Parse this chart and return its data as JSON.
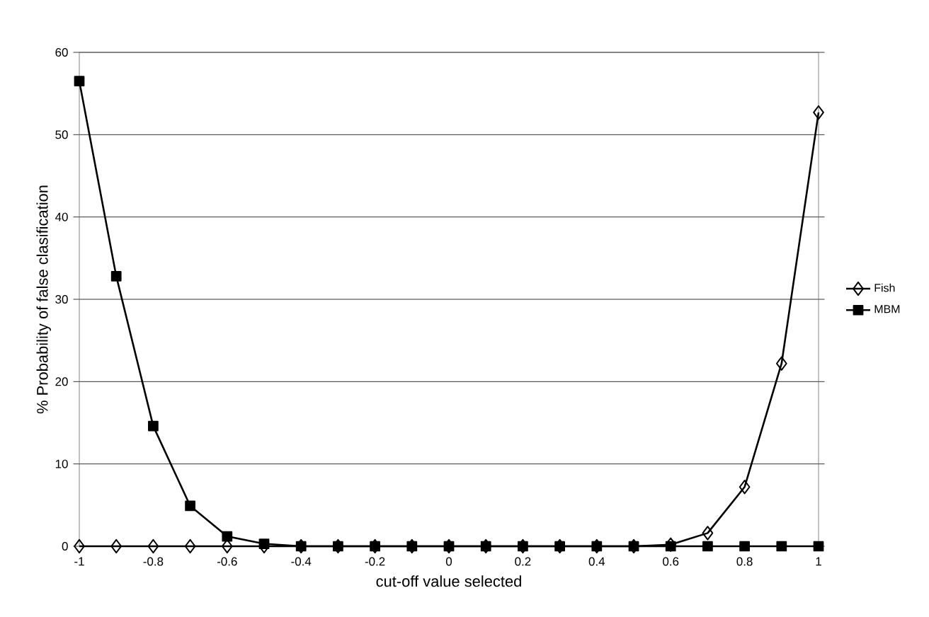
{
  "chart_data": {
    "type": "line",
    "xlabel": "cut-off value selected",
    "ylabel": "% Probability of false clasification",
    "x": [
      -1,
      -0.9,
      -0.8,
      -0.7,
      -0.6,
      -0.5,
      -0.4,
      -0.3,
      -0.2,
      -0.1,
      0,
      0.1,
      0.2,
      0.3,
      0.4,
      0.5,
      0.6,
      0.7,
      0.8,
      0.9,
      1
    ],
    "series": [
      {
        "name": "Fish",
        "color": "#000000",
        "marker": "diamond",
        "values": [
          0,
          0,
          0,
          0,
          0,
          0,
          0,
          0,
          0,
          0,
          0,
          0,
          0,
          0,
          0,
          0,
          0.2,
          1.6,
          7.2,
          22.2,
          52.7
        ]
      },
      {
        "name": "MBM",
        "color": "#000000",
        "marker": "square",
        "values": [
          56.5,
          32.8,
          14.6,
          4.9,
          1.2,
          0.3,
          0,
          0,
          0,
          0,
          0,
          0,
          0,
          0,
          0,
          0,
          0,
          0,
          0,
          0,
          0
        ]
      }
    ],
    "xlim": [
      -1,
      1
    ],
    "xticks": [
      -1,
      -0.8,
      -0.6,
      -0.4,
      -0.2,
      0,
      0.2,
      0.4,
      0.6,
      0.8,
      1
    ],
    "ylim": [
      0,
      60
    ],
    "yticks": [
      0,
      10,
      20,
      30,
      40,
      50,
      60
    ],
    "grid": "y",
    "legend": "right",
    "line_style": "solid"
  }
}
